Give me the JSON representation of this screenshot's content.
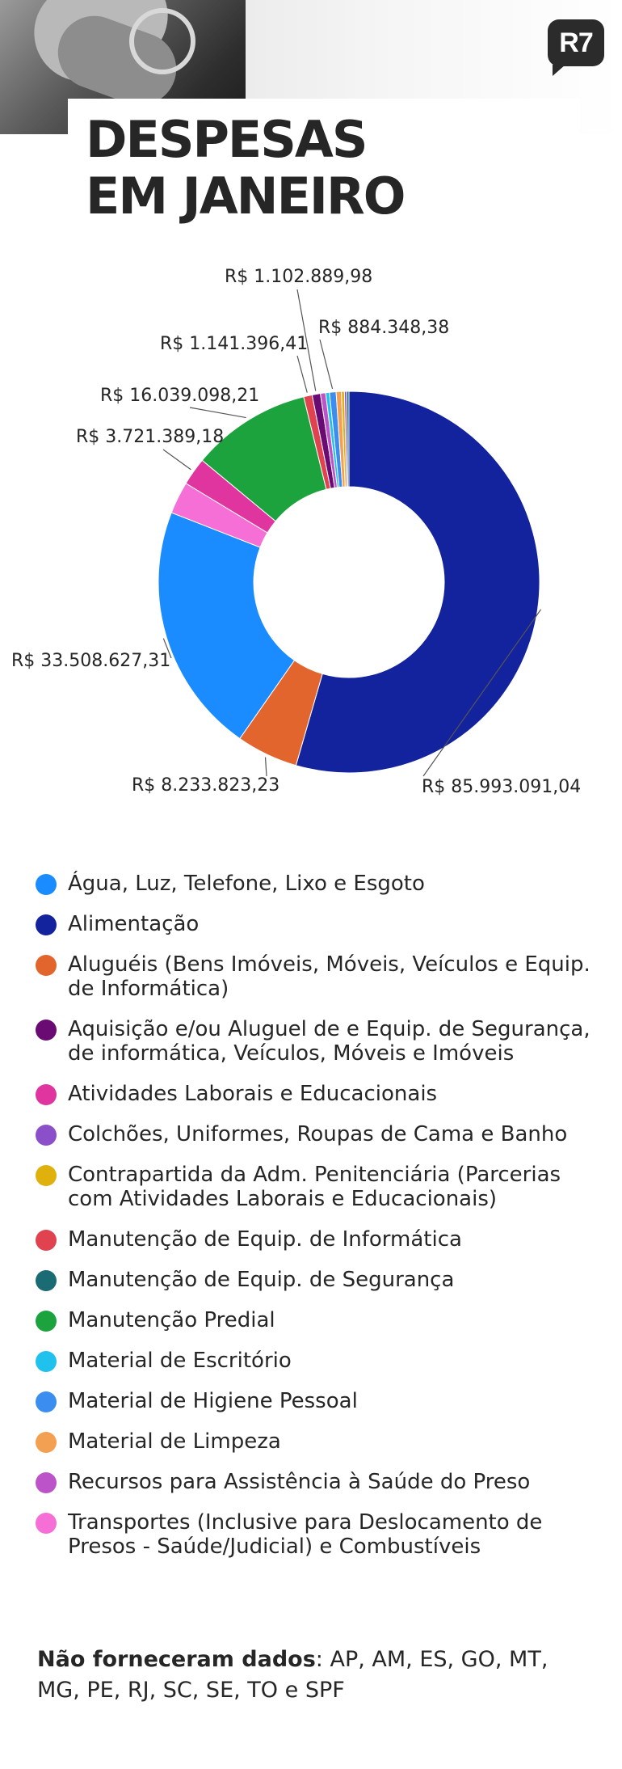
{
  "header": {
    "logo": "R7",
    "title_line1": "DESPESAS",
    "title_line2": "EM JANEIRO"
  },
  "colors": {
    "brand_logo": "#2b2b2b",
    "agua": "#1a8cff",
    "alimentacao": "#13239e",
    "alugueis": "#e2652e",
    "aquisicao": "#6a0a73",
    "atividades": "#e0359f",
    "colchoes": "#8a4fc9",
    "contrapartida": "#e0b00d",
    "manut_informatica": "#e0434f",
    "manut_seguranca": "#1a6b73",
    "manut_predial": "#1ca33d",
    "escritorio": "#21c1ed",
    "higiene": "#3b8ef0",
    "limpeza": "#f4a052",
    "saude": "#bd53c9",
    "transportes": "#f56fd6"
  },
  "chart_data": {
    "type": "donut",
    "unit": "R$",
    "slices": [
      {
        "category": "Alimentação",
        "value": 85993091.04,
        "label": "R$ 85.993.091,04",
        "color": "#13239e"
      },
      {
        "category": "Aluguéis (Bens Imóveis, Móveis, Veículos e Equip. de Informática)",
        "value": 8233823.23,
        "label": "R$ 8.233.823,23",
        "color": "#e2652e"
      },
      {
        "category": "Água, Luz, Telefone, Lixo e Esgoto",
        "value": 33508627.31,
        "label": "R$ 33.508.627,31",
        "color": "#1a8cff"
      },
      {
        "category": "Transportes (Inclusive para Deslocamento de Presos - Saúde/Judicial) e Combustíveis",
        "value": 4300000,
        "label": "",
        "color": "#f56fd6"
      },
      {
        "category": "Atividades Laborais e Educacionais",
        "value": 3721389.18,
        "label": "R$ 3.721.389,18",
        "color": "#e0359f"
      },
      {
        "category": "Manutenção Predial",
        "value": 16039098.21,
        "label": "R$ 16.039.098,21",
        "color": "#1ca33d"
      },
      {
        "category": "Manutenção de Equip. de Informática",
        "value": 1141396.41,
        "label": "R$ 1.141.396,41",
        "color": "#e0434f"
      },
      {
        "category": "Aquisição e/ou Aluguel de e Equip. de Segurança, de informática, Veículos, Móveis e Imóveis",
        "value": 1102889.98,
        "label": "R$ 1.102.889,98",
        "color": "#6a0a73"
      },
      {
        "category": "Recursos para Assistência à Saúde do Preso",
        "value": 700000,
        "label": "",
        "color": "#bd53c9"
      },
      {
        "category": "Material de Escritório",
        "value": 500000,
        "label": "",
        "color": "#21c1ed"
      },
      {
        "category": "Material de Higiene Pessoal",
        "value": 884348.38,
        "label": "R$ 884.348,38",
        "color": "#3b8ef0"
      },
      {
        "category": "Material de Limpeza",
        "value": 700000,
        "label": "",
        "color": "#f4a052"
      },
      {
        "category": "Contrapartida da Adm. Penitenciária (Parcerias com Atividades Laborais e Educacionais)",
        "value": 400000,
        "label": "",
        "color": "#e0b00d"
      },
      {
        "category": "Colchões, Uniformes, Roupas de Cama e Banho",
        "value": 300000,
        "label": "",
        "color": "#8a4fc9"
      },
      {
        "category": "Manutenção de Equip. de Segurança",
        "value": 300000,
        "label": "",
        "color": "#1a6b73"
      }
    ]
  },
  "legend": [
    {
      "label": "Água, Luz, Telefone, Lixo e Esgoto",
      "color": "#1a8cff"
    },
    {
      "label": "Alimentação",
      "color": "#13239e"
    },
    {
      "label": "Aluguéis (Bens Imóveis, Móveis, Veículos e Equip. de Informática)",
      "color": "#e2652e"
    },
    {
      "label": "Aquisição e/ou Aluguel de e Equip. de Segurança, de informática, Veículos, Móveis e Imóveis",
      "color": "#6a0a73"
    },
    {
      "label": "Atividades Laborais e Educacionais",
      "color": "#e0359f"
    },
    {
      "label": "Colchões, Uniformes, Roupas de Cama e Banho",
      "color": "#8a4fc9"
    },
    {
      "label": "Contrapartida da Adm. Penitenciária (Parcerias com Atividades Laborais e Educacionais)",
      "color": "#e0b00d"
    },
    {
      "label": "Manutenção de Equip. de Informática",
      "color": "#e0434f"
    },
    {
      "label": "Manutenção de Equip. de Segurança",
      "color": "#1a6b73"
    },
    {
      "label": "Manutenção Predial",
      "color": "#1ca33d"
    },
    {
      "label": "Material de Escritório",
      "color": "#21c1ed"
    },
    {
      "label": "Material de Higiene Pessoal",
      "color": "#3b8ef0"
    },
    {
      "label": "Material de Limpeza",
      "color": "#f4a052"
    },
    {
      "label": "Recursos para Assistência à Saúde do Preso",
      "color": "#bd53c9"
    },
    {
      "label": "Transportes (Inclusive para Deslocamento de Presos - Saúde/Judicial) e Combustíveis",
      "color": "#f56fd6"
    }
  ],
  "footnote": {
    "bold": "Não forneceram dados",
    "rest": ": AP, AM, ES, GO, MT, MG, PE, RJ, SC, SE, TO e SPF"
  }
}
